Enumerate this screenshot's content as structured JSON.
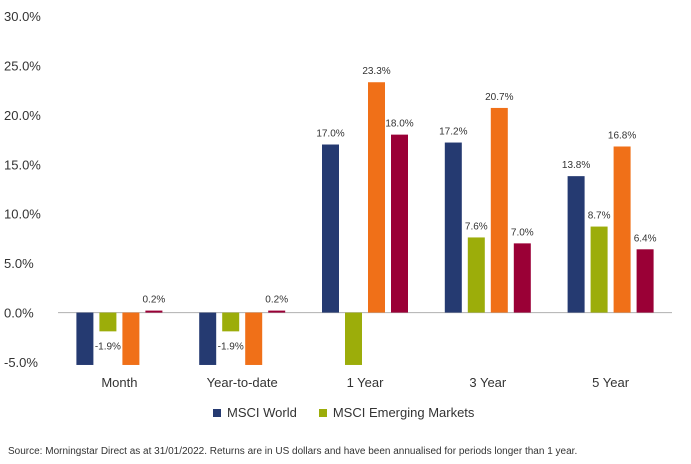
{
  "chart_data": {
    "type": "bar",
    "categories": [
      "Month",
      "Year-to-date",
      "1 Year",
      "3 Year",
      "5 Year"
    ],
    "ylim": [
      -5,
      30
    ],
    "yticks": [
      "30.0%",
      "25.0%",
      "20.0%",
      "15.0%",
      "10.0%",
      "5.0%",
      "0.0%",
      "-5.0%"
    ],
    "ytick_values": [
      30,
      25,
      20,
      15,
      10,
      5,
      0,
      -5
    ],
    "grid": false,
    "legend_position": "bottom",
    "series": [
      {
        "name": "MSCI World",
        "color": "#253a71",
        "values": [
          -5.3,
          -5.3,
          17.0,
          17.2,
          13.8
        ],
        "labels": [
          "",
          "",
          "17.0%",
          "17.2%",
          "13.8%"
        ]
      },
      {
        "name": "MSCI Emerging Markets",
        "color": "#9cad0a",
        "values": [
          -1.9,
          -1.9,
          -5.3,
          7.6,
          8.7
        ],
        "labels": [
          "-1.9%",
          "-1.9%",
          "",
          "7.6%",
          "8.7%"
        ]
      },
      {
        "name": "",
        "color": "#f07018",
        "values": [
          -5.3,
          -5.3,
          23.3,
          20.7,
          16.8
        ],
        "labels": [
          "",
          "",
          "23.3%",
          "20.7%",
          "16.8%"
        ]
      },
      {
        "name": "",
        "color": "#9a0036",
        "values": [
          0.2,
          0.2,
          18.0,
          7.0,
          6.4
        ],
        "labels": [
          "0.2%",
          "0.2%",
          "18.0%",
          "7.0%",
          "6.4%"
        ]
      }
    ],
    "source": "Source: Morningstar Direct as at 31/01/2022. Returns are in US dollars and have been annualised for periods longer than 1 year."
  }
}
